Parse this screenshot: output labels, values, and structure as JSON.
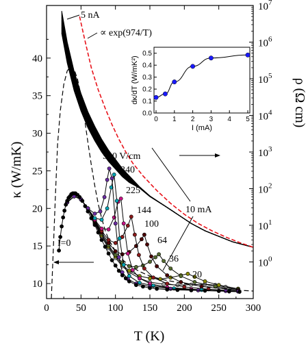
{
  "chart_data": [
    {
      "type": "scatter",
      "xlabel": "T (K)",
      "ylabel_left": "κ (W/mK)",
      "ylabel_right": "ρ (Ω cm)",
      "xlim": [
        0,
        300
      ],
      "ylim_left": [
        8,
        47
      ],
      "ylim_right_log10": [
        -1,
        7
      ],
      "x_ticks": [
        "0",
        "50",
        "100",
        "150",
        "200",
        "250",
        "300"
      ],
      "y_left_ticks": [
        "10",
        "15",
        "20",
        "25",
        "30",
        "35",
        "40"
      ],
      "y_right_tick_exponents": [
        "0",
        "1",
        "2",
        "3",
        "4",
        "5",
        "6",
        "7"
      ],
      "y_right_tick_base": "10",
      "legend": "none",
      "annotations": {
        "top_current": "5 nA",
        "fit": "∝ exp(974/T)",
        "zero_current": "I=0",
        "max_current": "10 mA",
        "field_530": "530 V/cm",
        "field_340": "340",
        "field_225": "225",
        "field_144": "144",
        "field_100": "100",
        "field_64": "64",
        "field_36": "36",
        "field_20": "20"
      },
      "series": [
        {
          "name": "I=0",
          "color": "#000000",
          "points": [
            [
              18,
              14.4
            ],
            [
              20,
              16.2
            ],
            [
              22,
              17.6
            ],
            [
              24,
              18.8
            ],
            [
              26,
              19.7
            ],
            [
              28,
              20.5
            ],
            [
              30,
              21.0
            ],
            [
              32,
              21.4
            ],
            [
              34,
              21.6
            ],
            [
              36,
              21.9
            ],
            [
              38,
              22.0
            ],
            [
              40,
              22.0
            ],
            [
              42,
              22.0
            ],
            [
              45,
              21.8
            ],
            [
              48,
              21.5
            ],
            [
              52,
              21.0
            ],
            [
              56,
              20.3
            ],
            [
              60,
              19.6
            ],
            [
              65,
              18.7
            ],
            [
              70,
              17.8
            ],
            [
              75,
              16.8
            ],
            [
              80,
              15.8
            ],
            [
              85,
              14.9
            ],
            [
              90,
              14.0
            ],
            [
              95,
              13.1
            ],
            [
              100,
              12.4
            ],
            [
              105,
              11.7
            ],
            [
              110,
              11.1
            ],
            [
              115,
              10.7
            ],
            [
              120,
              10.3
            ],
            [
              130,
              9.8
            ],
            [
              140,
              9.6
            ],
            [
              150,
              9.4
            ],
            [
              160,
              9.3
            ],
            [
              175,
              9.2
            ],
            [
              190,
              9.15
            ],
            [
              210,
              9.1
            ],
            [
              230,
              9.05
            ],
            [
              250,
              9.0
            ],
            [
              265,
              8.95
            ],
            [
              280,
              8.9
            ]
          ]
        },
        {
          "name": "530 V/cm",
          "color": "#6a2ca0",
          "points": [
            [
              30,
              20.8
            ],
            [
              40,
              21.6
            ],
            [
              50,
              21.2
            ],
            [
              60,
              20.0
            ],
            [
              70,
              19.3
            ],
            [
              78,
              19.6
            ],
            [
              84,
              21.5
            ],
            [
              88,
              23.8
            ],
            [
              91,
              25.3
            ],
            [
              95,
              24.0
            ],
            [
              100,
              18.0
            ],
            [
              105,
              13.5
            ],
            [
              110,
              11.5
            ],
            [
              118,
              10.6
            ],
            [
              130,
              10.0
            ],
            [
              150,
              9.6
            ],
            [
              180,
              9.3
            ],
            [
              220,
              9.1
            ],
            [
              260,
              9.0
            ],
            [
              278,
              8.95
            ]
          ]
        },
        {
          "name": "340",
          "color": "#00a5b5",
          "points": [
            [
              30,
              20.8
            ],
            [
              40,
              21.6
            ],
            [
              50,
              21.2
            ],
            [
              60,
              20.0
            ],
            [
              70,
              18.7
            ],
            [
              80,
              18.5
            ],
            [
              88,
              20.0
            ],
            [
              94,
              22.8
            ],
            [
              98,
              24.5
            ],
            [
              102,
              21.0
            ],
            [
              106,
              16.0
            ],
            [
              112,
              12.5
            ],
            [
              120,
              11.0
            ],
            [
              135,
              10.1
            ],
            [
              155,
              9.7
            ],
            [
              185,
              9.35
            ],
            [
              225,
              9.15
            ],
            [
              265,
              9.0
            ],
            [
              278,
              8.95
            ]
          ]
        },
        {
          "name": "225",
          "color": "#c71585",
          "points": [
            [
              30,
              20.8
            ],
            [
              40,
              21.6
            ],
            [
              50,
              21.2
            ],
            [
              60,
              20.0
            ],
            [
              70,
              18.5
            ],
            [
              80,
              17.3
            ],
            [
              90,
              17.2
            ],
            [
              98,
              18.8
            ],
            [
              104,
              20.9
            ],
            [
              108,
              21.3
            ],
            [
              112,
              18.0
            ],
            [
              118,
              14.0
            ],
            [
              125,
              11.8
            ],
            [
              135,
              10.7
            ],
            [
              150,
              10.0
            ],
            [
              175,
              9.5
            ],
            [
              210,
              9.25
            ],
            [
              250,
              9.05
            ],
            [
              278,
              8.95
            ]
          ]
        },
        {
          "name": "144",
          "color": "#8b1a1a",
          "points": [
            [
              30,
              20.8
            ],
            [
              40,
              21.6
            ],
            [
              50,
              21.2
            ],
            [
              60,
              20.0
            ],
            [
              70,
              18.4
            ],
            [
              80,
              17.0
            ],
            [
              90,
              15.8
            ],
            [
              100,
              15.4
            ],
            [
              110,
              16.2
            ],
            [
              118,
              17.7
            ],
            [
              123,
              18.9
            ],
            [
              128,
              16.5
            ],
            [
              134,
              13.8
            ],
            [
              142,
              12.0
            ],
            [
              155,
              10.8
            ],
            [
              175,
              10.0
            ],
            [
              200,
              9.55
            ],
            [
              235,
              9.25
            ],
            [
              278,
              9.0
            ]
          ]
        },
        {
          "name": "100",
          "color": "#4b0000",
          "points": [
            [
              30,
              20.8
            ],
            [
              40,
              21.6
            ],
            [
              50,
              21.2
            ],
            [
              60,
              20.0
            ],
            [
              70,
              18.3
            ],
            [
              80,
              16.8
            ],
            [
              90,
              15.4
            ],
            [
              100,
              14.3
            ],
            [
              110,
              13.9
            ],
            [
              120,
              14.2
            ],
            [
              130,
              15.0
            ],
            [
              138,
              15.9
            ],
            [
              142,
              16.5
            ],
            [
              146,
              15.2
            ],
            [
              152,
              13.6
            ],
            [
              160,
              12.3
            ],
            [
              175,
              11.1
            ],
            [
              195,
              10.2
            ],
            [
              225,
              9.6
            ],
            [
              278,
              9.1
            ]
          ]
        },
        {
          "name": "64",
          "color": "#556b2f",
          "points": [
            [
              30,
              20.8
            ],
            [
              40,
              21.6
            ],
            [
              50,
              21.2
            ],
            [
              60,
              20.0
            ],
            [
              70,
              18.2
            ],
            [
              80,
              16.6
            ],
            [
              90,
              15.1
            ],
            [
              100,
              13.8
            ],
            [
              110,
              12.8
            ],
            [
              120,
              12.3
            ],
            [
              130,
              12.2
            ],
            [
              140,
              12.4
            ],
            [
              150,
              12.9
            ],
            [
              158,
              13.5
            ],
            [
              163,
              13.9
            ],
            [
              170,
              13.0
            ],
            [
              180,
              12.0
            ],
            [
              195,
              11.0
            ],
            [
              215,
              10.2
            ],
            [
              245,
              9.6
            ],
            [
              278,
              9.2
            ]
          ]
        },
        {
          "name": "36",
          "color": "#8b8b00",
          "points": [
            [
              30,
              20.8
            ],
            [
              40,
              21.6
            ],
            [
              50,
              21.2
            ],
            [
              60,
              20.0
            ],
            [
              70,
              18.1
            ],
            [
              80,
              16.4
            ],
            [
              90,
              14.9
            ],
            [
              100,
              13.6
            ],
            [
              110,
              12.5
            ],
            [
              120,
              11.7
            ],
            [
              135,
              11.0
            ],
            [
              150,
              10.7
            ],
            [
              165,
              10.6
            ],
            [
              180,
              10.8
            ],
            [
              195,
              11.1
            ],
            [
              205,
              11.3
            ],
            [
              215,
              10.9
            ],
            [
              230,
              10.3
            ],
            [
              250,
              9.8
            ],
            [
              278,
              9.3
            ]
          ]
        },
        {
          "name": "20",
          "color": "#a9a9a9",
          "points": [
            [
              30,
              20.8
            ],
            [
              40,
              21.6
            ],
            [
              50,
              21.2
            ],
            [
              60,
              20.0
            ],
            [
              70,
              18.0
            ],
            [
              80,
              16.2
            ],
            [
              90,
              14.7
            ],
            [
              100,
              13.4
            ],
            [
              110,
              12.3
            ],
            [
              120,
              11.5
            ],
            [
              135,
              10.7
            ],
            [
              150,
              10.2
            ],
            [
              170,
              9.9
            ],
            [
              190,
              9.8
            ],
            [
              210,
              9.85
            ],
            [
              230,
              9.9
            ],
            [
              245,
              9.8
            ],
            [
              260,
              9.55
            ],
            [
              278,
              9.3
            ]
          ]
        }
      ],
      "kappa_dashed_curve": [
        [
          7,
          8.0
        ],
        [
          10,
          15.0
        ],
        [
          13,
          22.0
        ],
        [
          16,
          28.5
        ],
        [
          20,
          33.0
        ],
        [
          25,
          36.5
        ],
        [
          30,
          38.3
        ],
        [
          35,
          38.9
        ],
        [
          40,
          38.5
        ],
        [
          45,
          37.2
        ],
        [
          50,
          35.0
        ],
        [
          55,
          32.0
        ],
        [
          60,
          28.8
        ],
        [
          65,
          25.8
        ],
        [
          70,
          23.0
        ],
        [
          75,
          20.6
        ],
        [
          80,
          18.7
        ],
        [
          85,
          17.1
        ],
        [
          90,
          15.9
        ],
        [
          100,
          14.3
        ],
        [
          110,
          13.2
        ],
        [
          120,
          12.4
        ],
        [
          135,
          11.6
        ],
        [
          150,
          11.0
        ],
        [
          170,
          10.5
        ],
        [
          200,
          10.0
        ],
        [
          230,
          9.6
        ],
        [
          260,
          9.3
        ],
        [
          280,
          9.1
        ],
        [
          300,
          9.0
        ]
      ],
      "rho_curve_log10": [
        [
          22,
          6.85
        ],
        [
          30,
          6.0
        ],
        [
          40,
          5.2
        ],
        [
          50,
          4.6
        ],
        [
          60,
          4.1
        ],
        [
          70,
          3.7
        ],
        [
          80,
          3.35
        ],
        [
          90,
          3.05
        ],
        [
          100,
          2.8
        ],
        [
          110,
          2.55
        ],
        [
          120,
          2.35
        ],
        [
          135,
          2.05
        ],
        [
          150,
          1.8
        ],
        [
          170,
          1.55
        ],
        [
          190,
          1.3
        ],
        [
          210,
          1.05
        ],
        [
          230,
          0.85
        ],
        [
          250,
          0.7
        ],
        [
          270,
          0.55
        ],
        [
          300,
          0.4
        ]
      ],
      "fit_curve_log10": [
        [
          48,
          6.7
        ],
        [
          55,
          6.1
        ],
        [
          65,
          5.3
        ],
        [
          75,
          4.7
        ],
        [
          85,
          4.2
        ],
        [
          95,
          3.75
        ],
        [
          105,
          3.35
        ],
        [
          115,
          3.0
        ],
        [
          125,
          2.7
        ],
        [
          140,
          2.35
        ],
        [
          160,
          1.95
        ],
        [
          180,
          1.6
        ],
        [
          200,
          1.3
        ],
        [
          220,
          1.05
        ],
        [
          240,
          0.85
        ],
        [
          260,
          0.68
        ],
        [
          280,
          0.53
        ],
        [
          300,
          0.4
        ]
      ]
    },
    {
      "type": "line",
      "xlabel": "I (mA)",
      "ylabel": "dκ/dT (W/mK²)",
      "xlim": [
        0,
        5
      ],
      "ylim": [
        0,
        0.55
      ],
      "x_ticks": [
        "0",
        "1",
        "2",
        "3",
        "4",
        "5"
      ],
      "y_ticks": [
        "0.0",
        "0.1",
        "0.2",
        "0.3",
        "0.4",
        "0.5"
      ],
      "x": [
        0,
        0.5,
        1,
        2,
        3,
        5
      ],
      "values": [
        0.13,
        0.16,
        0.26,
        0.39,
        0.46,
        0.485
      ],
      "color": "#1a1aff"
    }
  ]
}
